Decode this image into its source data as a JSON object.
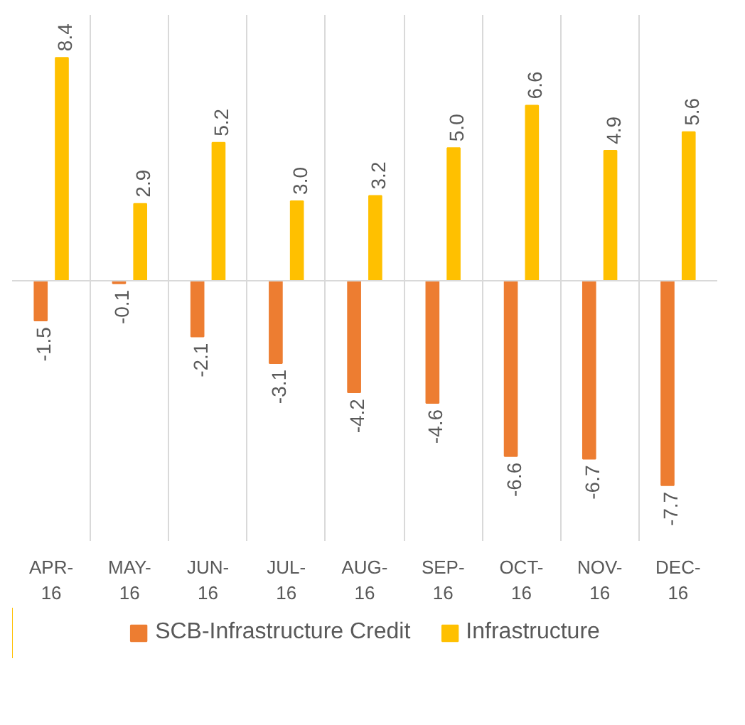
{
  "chart_data": {
    "type": "bar",
    "categories": [
      "APR-16",
      "MAY-16",
      "JUN-16",
      "JUL-16",
      "AUG-16",
      "SEP-16",
      "OCT-16",
      "NOV-16",
      "DEC-16"
    ],
    "series": [
      {
        "name": "SCB-Infrastructure Credit",
        "color": "#ed7d31",
        "values": [
          -1.5,
          -0.1,
          -2.1,
          -3.1,
          -4.2,
          -4.6,
          -6.6,
          -6.7,
          -7.7
        ],
        "value_labels": [
          "-1.5",
          "-0.1",
          "-2.1",
          "-3.1",
          "-4.2",
          "-4.6",
          "-6.6",
          "-6.7",
          "-7.7"
        ]
      },
      {
        "name": "Infrastructure",
        "color": "#ffc000",
        "values": [
          8.4,
          2.9,
          5.2,
          3.0,
          3.2,
          5.0,
          6.6,
          4.9,
          5.6
        ],
        "value_labels": [
          "8.4",
          "2.9",
          "5.2",
          "3.0",
          "3.2",
          "5.0",
          "6.6",
          "4.9",
          "5.6"
        ]
      }
    ],
    "grid": "x",
    "legend": "bottom"
  }
}
